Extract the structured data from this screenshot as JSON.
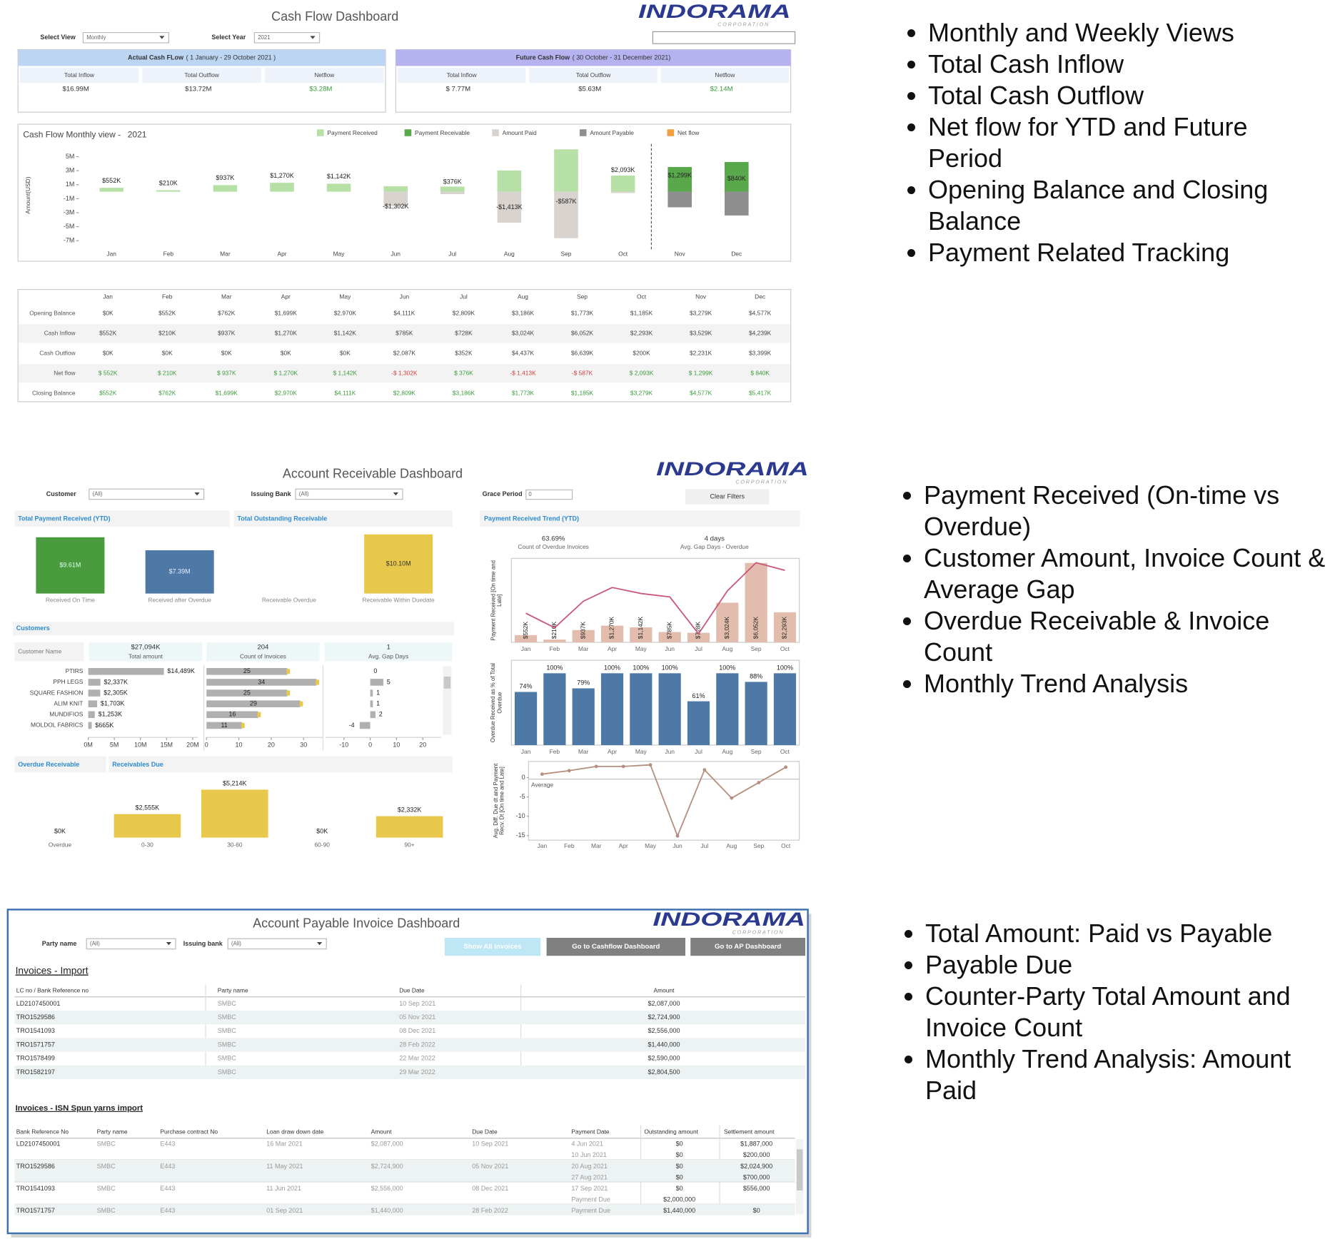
{
  "bullets": [
    [
      "Monthly and Weekly Views",
      "Total Cash Inflow",
      "Total Cash Outflow",
      "Net flow for YTD and Future Period",
      "Opening Balance and Closing Balance",
      "Payment Related Tracking"
    ],
    [
      "Payment Received (On-time vs Overdue)",
      "Customer Amount, Invoice Count & Average Gap",
      "Overdue Receivable & Invoice Count",
      "Monthly Trend Analysis"
    ],
    [
      "Total Amount: Paid vs Payable",
      "Payable Due",
      "Counter-Party Total Amount and Invoice Count",
      "Monthly Trend Analysis: Amount Paid"
    ]
  ],
  "cash_flow": {
    "title": "Cash Flow Dashboard",
    "logo": "INDORAMA",
    "logo_sub": "CORPORATION",
    "filters": [
      {
        "label": "Select View",
        "value": "Monthly"
      },
      {
        "label": "Select Year",
        "value": "2021"
      }
    ],
    "actual": {
      "title": "Actual Cash FLow",
      "period": "( 1 January - 29 October 2021 )",
      "color": "#bcd5f3",
      "kpis": [
        {
          "label": "Total Inflow",
          "value": "$16.99M"
        },
        {
          "label": "Total Outflow",
          "value": "$13.72M"
        },
        {
          "label": "Netflow",
          "value": "$3.28M"
        }
      ]
    },
    "future": {
      "title": "Future Cash Flow",
      "period": "( 30 October -  31 December 2021)",
      "color": "#b5b2ef",
      "kpis": [
        {
          "label": "Total Inflow",
          "value": "$ 7.77M"
        },
        {
          "label": "Total Outflow",
          "value": "$5.63M"
        },
        {
          "label": "Netflow",
          "value": "$2.14M"
        }
      ]
    },
    "chart_data": {
      "type": "bar",
      "title": "Cash Flow Monthly view -",
      "year": "2021",
      "y_label": "Amount(USD)",
      "legend": "top",
      "categories": [
        "Jan",
        "Feb",
        "Mar",
        "Apr",
        "May",
        "Jun",
        "Jul",
        "Aug",
        "Sep",
        "Oct",
        "Nov",
        "Dec"
      ],
      "ylim": [
        -7.5,
        6.5
      ],
      "yticks": [
        {
          "value": 5,
          "label": "5M"
        },
        {
          "value": 3,
          "label": "3M"
        },
        {
          "value": 1,
          "label": "1M"
        },
        {
          "value": -1,
          "label": "-1M"
        },
        {
          "value": -3,
          "label": "-3M"
        },
        {
          "value": -5,
          "label": "-5M"
        },
        {
          "value": -7,
          "label": "-7M"
        }
      ],
      "series": [
        {
          "name": "Payment Received",
          "color": "#b7e0a6",
          "values": [
            0.552,
            0.21,
            0.937,
            1.27,
            1.142,
            0.785,
            0.728,
            3.024,
            6.052,
            2.293,
            null,
            null
          ]
        },
        {
          "name": "Payment Receivable",
          "color": "#5aa84c",
          "values": [
            null,
            null,
            null,
            null,
            null,
            null,
            null,
            null,
            null,
            null,
            3.529,
            4.239
          ]
        },
        {
          "name": "Amount Paid",
          "color": "#d9d3cf",
          "values": [
            0,
            0,
            0,
            0,
            0,
            -2.087,
            -0.352,
            -4.437,
            -6.639,
            -0.2,
            null,
            null
          ]
        },
        {
          "name": "Amount Payable",
          "color": "#8e8e8e",
          "values": [
            null,
            null,
            null,
            null,
            null,
            null,
            null,
            null,
            null,
            null,
            -2.231,
            -3.399
          ]
        },
        {
          "name": "Net flow",
          "type": "line",
          "color": "#f0a040",
          "values": [
            0.552,
            0.21,
            0.937,
            1.27,
            1.142,
            -1.302,
            0.376,
            -1.413,
            -0.587,
            2.093,
            1.299,
            0.84
          ],
          "value_labels": [
            "$552K",
            "$210K",
            "$937K",
            "$1,270K",
            "$1,142K",
            "-$1,302K",
            "$376K",
            "-$1,413K",
            "-$587K",
            "$2,093K",
            "$1,299K",
            "$840K"
          ]
        }
      ]
    },
    "table": {
      "negative_color": "#d04040",
      "rows": [
        {
          "label": "Opening Balance",
          "color": "#444",
          "cells": [
            "$0K",
            "$552K",
            "$762K",
            "$1,699K",
            "$2,970K",
            "$4,111K",
            "$2,809K",
            "$3,186K",
            "$1,773K",
            "$1,185K",
            "$3,279K",
            "$4,577K"
          ]
        },
        {
          "label": "Cash Inflow",
          "color": "#444",
          "cells": [
            "$552K",
            "$210K",
            "$937K",
            "$1,270K",
            "$1,142K",
            "$785K",
            "$728K",
            "$3,024K",
            "$6,052K",
            "$2,293K",
            "$3,529K",
            "$4,239K"
          ]
        },
        {
          "label": "Cash Outflow",
          "color": "#444",
          "cells": [
            "$0K",
            "$0K",
            "$0K",
            "$0K",
            "$0K",
            "$2,087K",
            "$352K",
            "$4,437K",
            "$6,639K",
            "$200K",
            "$2,231K",
            "$3,399K"
          ]
        },
        {
          "label": "Net flow",
          "color": "#3c9a3c",
          "cells": [
            "$ 552K",
            "$ 210K",
            "$ 937K",
            "$ 1,270K",
            "$ 1,142K",
            "-$ 1,302K",
            "$ 376K",
            "-$ 1,413K",
            "-$ 587K",
            "$ 2,093K",
            "$ 1,299K",
            "$ 840K"
          ]
        },
        {
          "label": "Closing Balance",
          "color": "#3c9a3c",
          "cells": [
            "$552K",
            "$762K",
            "$1,699K",
            "$2,970K",
            "$4,111K",
            "$2,809K",
            "$3,186K",
            "$1,773K",
            "$1,185K",
            "$3,279K",
            "$4,577K",
            "$5,417K"
          ]
        }
      ]
    }
  },
  "receivable": {
    "title": "Account Receivable Dashboard",
    "logo": "INDORAMA",
    "logo_sub": "CORPORATION",
    "filters": [
      {
        "label": "Customer",
        "value": "(All)"
      },
      {
        "label": "Issuing Bank",
        "value": "(All)"
      },
      {
        "label": "Grace Period",
        "value": "0"
      }
    ],
    "clear": "Clear Filters",
    "totals": {
      "panels": [
        "Total Payment Received (YTD)",
        "Total Outstanding Receivable"
      ],
      "chart_data": {
        "type": "bar",
        "categories": [
          "Received On Time",
          "Received after Overdue",
          "Receivable Overdue",
          "Receivable Within Duedate"
        ],
        "values": [
          9.61,
          7.39,
          0,
          10.1
        ],
        "value_labels": [
          "$9.61M",
          "$7.39M",
          null,
          "$10.10M"
        ],
        "colors": [
          "#4a9a3e",
          "#4e79a7",
          "#e8c84a",
          "#e8c84a"
        ],
        "label_colors": [
          "#dfe",
          "#e8eef8",
          "#333",
          "#333"
        ],
        "ylim": [
          0,
          11
        ]
      }
    },
    "customers": {
      "title": "Customers",
      "header": "Customer Name",
      "chart_data": {
        "type": "bar",
        "categories": [
          "PTIRS",
          "PPH LEGS",
          "SQUARE FASHION",
          "ALIM KNIT",
          "MUNDIFIOS",
          "MOLDOL FABRICS"
        ],
        "series": [
          {
            "name": "Total amount",
            "total": "$27,094K",
            "color": "#b0b0b0",
            "values": [
              14489,
              2337,
              2305,
              1703,
              1253,
              665
            ],
            "value_labels": [
              "$14,489K",
              "$2,337K",
              "$2,305K",
              "$1,703K",
              "$1,253K",
              "$665K"
            ],
            "xlim": [
              0,
              21000
            ],
            "xticks": [
              {
                "value": 0,
                "label": "0M"
              },
              {
                "value": 5000,
                "label": "5M"
              },
              {
                "value": 10000,
                "label": "10M"
              },
              {
                "value": 15000,
                "label": "15M"
              },
              {
                "value": 20000,
                "label": "20M"
              }
            ]
          },
          {
            "name": "Count of Invoices",
            "total": "204",
            "color": "#b0b0b0",
            "values": [
              25,
              34,
              25,
              29,
              16,
              11
            ],
            "xlim": [
              0,
              36
            ],
            "xticks": [
              0,
              10,
              20,
              30
            ]
          },
          {
            "name": "Avg. Gap Days",
            "total": "1",
            "color": "#b0b0b0",
            "values": [
              0,
              5,
              1,
              1,
              2,
              -4
            ],
            "xlim": [
              -17,
              27
            ],
            "xticks": [
              -10,
              0,
              10,
              20
            ]
          }
        ]
      }
    },
    "due": {
      "panels": [
        "Overdue Receivable",
        "Receivables Due"
      ],
      "chart_data": {
        "type": "bar",
        "color": "#e8c84a",
        "categories": [
          "Overdue",
          "0-30",
          "30-60",
          "60-90",
          "90+"
        ],
        "values": [
          0,
          2555,
          5214,
          0,
          2332
        ],
        "value_labels": [
          "$0K",
          "$2,555K",
          "$5,214K",
          "$0K",
          "$2,332K"
        ],
        "ylim": [
          0,
          5800
        ]
      }
    },
    "trend": {
      "title": "Payment Received Trend (YTD)",
      "kpis": [
        {
          "value": "63.69%",
          "label": "Count of Overdue Invoices"
        },
        {
          "value": "4 days",
          "label": "Avg. Gap Days - Overdue"
        }
      ],
      "chart_data": [
        {
          "type": "bar",
          "y_label": "Payment Received [On time and Late]",
          "color": "#e2bcac",
          "line_color": "#c9577a",
          "categories": [
            "Jan",
            "Feb",
            "Mar",
            "Apr",
            "May",
            "Jun",
            "Jul",
            "Aug",
            "Sep",
            "Oct"
          ],
          "values": [
            552,
            210,
            937,
            1270,
            1142,
            785,
            728,
            3024,
            6052,
            2293
          ],
          "value_labels": [
            "$552K",
            "$210K",
            "$937K",
            "$1,270K",
            "$1,142K",
            "$785K",
            "$728K",
            "$3,024K",
            "$6,052K",
            "$2,293K"
          ],
          "line_values": [
            2222,
            1111,
            3137,
            4183,
            3725,
            3464,
            654,
            3922,
            6078,
            5490
          ],
          "ylim": [
            0,
            6400
          ]
        },
        {
          "type": "bar",
          "y_label": "Overdue Received as % of Total Overdue",
          "color": "#4e79a7",
          "categories": [
            "Jan",
            "Feb",
            "Mar",
            "Apr",
            "May",
            "Jun",
            "Jul",
            "Aug",
            "Sep",
            "Oct"
          ],
          "values": [
            74,
            100,
            79,
            100,
            100,
            100,
            61,
            100,
            88,
            100
          ],
          "value_labels": [
            "74%",
            "100%",
            "79%",
            "100%",
            "100%",
            "100%",
            "61%",
            "100%",
            "88%",
            "100%"
          ],
          "ylim": [
            0,
            118
          ]
        },
        {
          "type": "line",
          "y_label": "Avg. Diff. Due dt and Payment Recv. Dt [On time and Late]",
          "color": "#b58e7e",
          "categories": [
            "Jan",
            "Feb",
            "Mar",
            "Apr",
            "May",
            "Jun",
            "Jul",
            "Aug",
            "Sep",
            "Oct"
          ],
          "values": [
            0.9,
            1.8,
            2.9,
            2.9,
            3.3,
            -15.1,
            2.0,
            -5.3,
            -1.3,
            2.7
          ],
          "average": -0.4,
          "average_label": "Average",
          "ylim": [
            -16.2,
            4.2
          ],
          "yticks": [
            0,
            -5,
            -10,
            -15
          ]
        }
      ]
    }
  },
  "payable": {
    "title": "Account Payable  Invoice Dashboard",
    "logo": "INDORAMA",
    "logo_sub": "CORPORATION",
    "filters": [
      {
        "label": "Party name",
        "value": "(All)"
      },
      {
        "label": "Issuing bank",
        "value": "(All)"
      }
    ],
    "buttons": [
      "Show All Invoices",
      "Go to Cashflow Dashboard",
      "Go to AP Dashboard"
    ],
    "import": {
      "title": "Invoices - Import",
      "columns": [
        "LC no / Bank Reference no",
        "Party name",
        "Due Date",
        "Amount"
      ],
      "rows": [
        [
          "LD2107450001",
          "SMBC",
          "10 Sep 2021",
          "$2,087,000"
        ],
        [
          "TRO1529586",
          "SMBC",
          "05 Nov 2021",
          "$2,724,900"
        ],
        [
          "TRO1541093",
          "SMBC",
          "08 Dec 2021",
          "$2,556,000"
        ],
        [
          "TRO1571757",
          "SMBC",
          "28 Feb 2022",
          "$1,440,000"
        ],
        [
          "TRO1578499",
          "SMBC",
          "22 Mar 2022",
          "$2,590,000"
        ],
        [
          "TRO1582197",
          "SMBC",
          "29 Mar 2022",
          "$2,804,500"
        ]
      ]
    },
    "isn": {
      "title": "Invoices - ISN Spun yarns import",
      "columns": [
        "Bank Reference No",
        "Party name",
        "Purchase contract No",
        "Loan draw down date",
        "Amount",
        "Due Date",
        "Payment Date",
        "Outstanding amount",
        "Settlement amount"
      ],
      "rows": [
        {
          "cells": [
            "LD2107450001",
            "SMBC",
            "E443",
            "16 Mar 2021",
            "$2,087,000",
            "10 Sep 2021"
          ],
          "payments": [
            [
              "4 Jun 2021",
              "$0",
              "$1,887,000"
            ],
            [
              "10 Jun 2021",
              "$0",
              "$200,000"
            ]
          ]
        },
        {
          "cells": [
            "TRO1529586",
            "SMBC",
            "E443",
            "11 May 2021",
            "$2,724,900",
            "05 Nov 2021"
          ],
          "payments": [
            [
              "20 Aug 2021",
              "$0",
              "$2,024,900"
            ],
            [
              "27 Aug 2021",
              "$0",
              "$700,000"
            ]
          ]
        },
        {
          "cells": [
            "TRO1541093",
            "SMBC",
            "E443",
            "11 Jun 2021",
            "$2,556,000",
            "08 Dec 2021"
          ],
          "payments": [
            [
              "17 Sep 2021",
              "$0",
              "$556,000"
            ],
            [
              "Payment Due",
              "$2,000,000",
              null
            ]
          ]
        },
        {
          "cells": [
            "TRO1571757",
            "SMBC",
            "E443",
            "01 Sep 2021",
            "$1,440,000",
            "28 Feb 2022"
          ],
          "payments": [
            [
              "Payment Due",
              "$1,440,000",
              "$0"
            ]
          ]
        }
      ]
    }
  }
}
